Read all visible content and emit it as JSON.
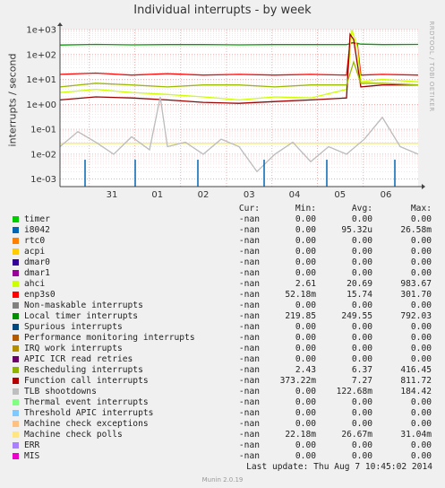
{
  "title": "Individual interrupts - by week",
  "ylabel": "interrupts / second",
  "sidelabel": "RRDTOOL / TOBI OETIKER",
  "chart_data": {
    "type": "line",
    "yscale": "log",
    "ylim": [
      0.0005,
      1000
    ],
    "y_ticks": [
      "1e+03",
      "1e+02",
      "1e+01",
      "1e+00",
      "1e-01",
      "1e-02",
      "1e-03"
    ],
    "y_tick_values": [
      1000,
      100,
      10,
      1,
      0.1,
      0.01,
      0.001
    ],
    "x_ticks": [
      "31",
      "01",
      "02",
      "03",
      "04",
      "05",
      "06"
    ],
    "grid": true,
    "series": [
      {
        "name": "Local timer interrupts",
        "color": "#00a000",
        "points": [
          [
            0,
            240
          ],
          [
            0.1,
            255
          ],
          [
            0.2,
            245
          ],
          [
            0.3,
            250
          ],
          [
            0.4,
            250
          ],
          [
            0.5,
            245
          ],
          [
            0.6,
            250
          ],
          [
            0.7,
            250
          ],
          [
            0.8,
            250
          ],
          [
            0.82,
            300
          ],
          [
            0.84,
            260
          ],
          [
            0.9,
            250
          ],
          [
            1,
            255
          ]
        ]
      },
      {
        "name": "enp3s0",
        "color": "#ff0000",
        "points": [
          [
            0,
            16
          ],
          [
            0.1,
            18
          ],
          [
            0.2,
            15
          ],
          [
            0.3,
            17
          ],
          [
            0.4,
            15
          ],
          [
            0.5,
            16
          ],
          [
            0.6,
            15
          ],
          [
            0.7,
            16
          ],
          [
            0.8,
            15
          ],
          [
            0.81,
            300
          ],
          [
            0.83,
            280
          ],
          [
            0.84,
            15
          ],
          [
            0.9,
            16
          ],
          [
            1,
            15
          ]
        ]
      },
      {
        "name": "ahci",
        "color": "#ccff00",
        "points": [
          [
            0,
            3
          ],
          [
            0.1,
            4
          ],
          [
            0.2,
            3
          ],
          [
            0.3,
            2.5
          ],
          [
            0.4,
            2
          ],
          [
            0.5,
            1.5
          ],
          [
            0.6,
            2
          ],
          [
            0.7,
            1.8
          ],
          [
            0.8,
            4
          ],
          [
            0.815,
            983
          ],
          [
            0.83,
            200
          ],
          [
            0.84,
            8
          ],
          [
            0.9,
            10
          ],
          [
            1,
            8
          ]
        ]
      },
      {
        "name": "Function call interrupts",
        "color": "#990000",
        "points": [
          [
            0,
            1.5
          ],
          [
            0.1,
            2
          ],
          [
            0.2,
            1.8
          ],
          [
            0.3,
            1.5
          ],
          [
            0.4,
            1.2
          ],
          [
            0.5,
            1.1
          ],
          [
            0.6,
            1.3
          ],
          [
            0.7,
            1.5
          ],
          [
            0.8,
            1.8
          ],
          [
            0.81,
            650
          ],
          [
            0.82,
            400
          ],
          [
            0.84,
            5
          ],
          [
            0.9,
            6
          ],
          [
            1,
            6
          ]
        ]
      },
      {
        "name": "Rescheduling interrupts",
        "color": "#99bb00",
        "points": [
          [
            0,
            5
          ],
          [
            0.1,
            7
          ],
          [
            0.2,
            6
          ],
          [
            0.3,
            5
          ],
          [
            0.4,
            6
          ],
          [
            0.5,
            6
          ],
          [
            0.6,
            5
          ],
          [
            0.7,
            6
          ],
          [
            0.8,
            6
          ],
          [
            0.82,
            50
          ],
          [
            0.84,
            7
          ],
          [
            0.9,
            7
          ],
          [
            1,
            6
          ]
        ]
      },
      {
        "name": "Machine check polls",
        "color": "#eeee66",
        "points": [
          [
            0,
            0.027
          ],
          [
            0.2,
            0.027
          ],
          [
            0.4,
            0.027
          ],
          [
            0.6,
            0.027
          ],
          [
            0.8,
            0.027
          ],
          [
            1,
            0.027
          ]
        ]
      },
      {
        "name": "TLB shootdowns",
        "color": "#bbbbbb",
        "points": [
          [
            0,
            0.02
          ],
          [
            0.05,
            0.08
          ],
          [
            0.1,
            0.03
          ],
          [
            0.15,
            0.01
          ],
          [
            0.2,
            0.05
          ],
          [
            0.25,
            0.015
          ],
          [
            0.28,
            2
          ],
          [
            0.3,
            0.02
          ],
          [
            0.35,
            0.03
          ],
          [
            0.4,
            0.01
          ],
          [
            0.45,
            0.04
          ],
          [
            0.5,
            0.02
          ],
          [
            0.55,
            0.002
          ],
          [
            0.6,
            0.01
          ],
          [
            0.65,
            0.03
          ],
          [
            0.7,
            0.005
          ],
          [
            0.75,
            0.02
          ],
          [
            0.8,
            0.01
          ],
          [
            0.85,
            0.04
          ],
          [
            0.9,
            0.3
          ],
          [
            0.95,
            0.02
          ],
          [
            1,
            0.01
          ]
        ]
      },
      {
        "name": "i8042",
        "color": "#0066b3",
        "points": []
      }
    ],
    "i8042_spikes": [
      0.07,
      0.21,
      0.385,
      0.57,
      0.745,
      0.935
    ],
    "i8042_spike_value": 0.006
  },
  "legend": {
    "headers": {
      "cur": "Cur:",
      "min": "Min:",
      "avg": "Avg:",
      "max": "Max:"
    },
    "rows": [
      {
        "name": "timer",
        "color": "#00cc00",
        "cur": "-nan",
        "min": "0.00",
        "avg": "0.00",
        "max": "0.00"
      },
      {
        "name": "i8042",
        "color": "#0066b3",
        "cur": "-nan",
        "min": "0.00",
        "avg": "95.32u",
        "max": "26.58m"
      },
      {
        "name": "rtc0",
        "color": "#ff8000",
        "cur": "-nan",
        "min": "0.00",
        "avg": "0.00",
        "max": "0.00"
      },
      {
        "name": "acpi",
        "color": "#ffcc00",
        "cur": "-nan",
        "min": "0.00",
        "avg": "0.00",
        "max": "0.00"
      },
      {
        "name": "dmar0",
        "color": "#330099",
        "cur": "-nan",
        "min": "0.00",
        "avg": "0.00",
        "max": "0.00"
      },
      {
        "name": "dmar1",
        "color": "#990099",
        "cur": "-nan",
        "min": "0.00",
        "avg": "0.00",
        "max": "0.00"
      },
      {
        "name": "ahci",
        "color": "#ccff00",
        "cur": "-nan",
        "min": "2.61",
        "avg": "20.69",
        "max": "983.67"
      },
      {
        "name": "enp3s0",
        "color": "#ff0000",
        "cur": "-nan",
        "min": "52.18m",
        "avg": "15.74",
        "max": "301.70"
      },
      {
        "name": "Non-maskable interrupts",
        "color": "#808080",
        "cur": "-nan",
        "min": "0.00",
        "avg": "0.00",
        "max": "0.00"
      },
      {
        "name": "Local timer interrupts",
        "color": "#008f00",
        "cur": "-nan",
        "min": "219.85",
        "avg": "249.55",
        "max": "792.03"
      },
      {
        "name": "Spurious interrupts",
        "color": "#00487d",
        "cur": "-nan",
        "min": "0.00",
        "avg": "0.00",
        "max": "0.00"
      },
      {
        "name": "Performance monitoring interrupts",
        "color": "#b35a00",
        "cur": "-nan",
        "min": "0.00",
        "avg": "0.00",
        "max": "0.00"
      },
      {
        "name": "IRQ work interrupts",
        "color": "#b38f00",
        "cur": "-nan",
        "min": "0.00",
        "avg": "0.00",
        "max": "0.00"
      },
      {
        "name": "APIC ICR read retries",
        "color": "#6b006b",
        "cur": "-nan",
        "min": "0.00",
        "avg": "0.00",
        "max": "0.00"
      },
      {
        "name": "Rescheduling interrupts",
        "color": "#8fb300",
        "cur": "-nan",
        "min": "2.43",
        "avg": "6.37",
        "max": "416.45"
      },
      {
        "name": "Function call interrupts",
        "color": "#b30000",
        "cur": "-nan",
        "min": "373.22m",
        "avg": "7.27",
        "max": "811.72"
      },
      {
        "name": "TLB shootdowns",
        "color": "#bebebe",
        "cur": "-nan",
        "min": "0.00",
        "avg": "122.68m",
        "max": "184.42"
      },
      {
        "name": "Thermal event interrupts",
        "color": "#80ff80",
        "cur": "-nan",
        "min": "0.00",
        "avg": "0.00",
        "max": "0.00"
      },
      {
        "name": "Threshold APIC interrupts",
        "color": "#80c9ff",
        "cur": "-nan",
        "min": "0.00",
        "avg": "0.00",
        "max": "0.00"
      },
      {
        "name": "Machine check exceptions",
        "color": "#ffc080",
        "cur": "-nan",
        "min": "0.00",
        "avg": "0.00",
        "max": "0.00"
      },
      {
        "name": "Machine check polls",
        "color": "#ffe680",
        "cur": "-nan",
        "min": "22.18m",
        "avg": "26.67m",
        "max": "31.04m"
      },
      {
        "name": "ERR",
        "color": "#aa80ff",
        "cur": "-nan",
        "min": "0.00",
        "avg": "0.00",
        "max": "0.00"
      },
      {
        "name": "MIS",
        "color": "#ee00cc",
        "cur": "-nan",
        "min": "0.00",
        "avg": "0.00",
        "max": "0.00"
      }
    ]
  },
  "last_update": "Last update:  Thu Aug  7 10:45:02 2014",
  "version": "Munin 2.0.19"
}
